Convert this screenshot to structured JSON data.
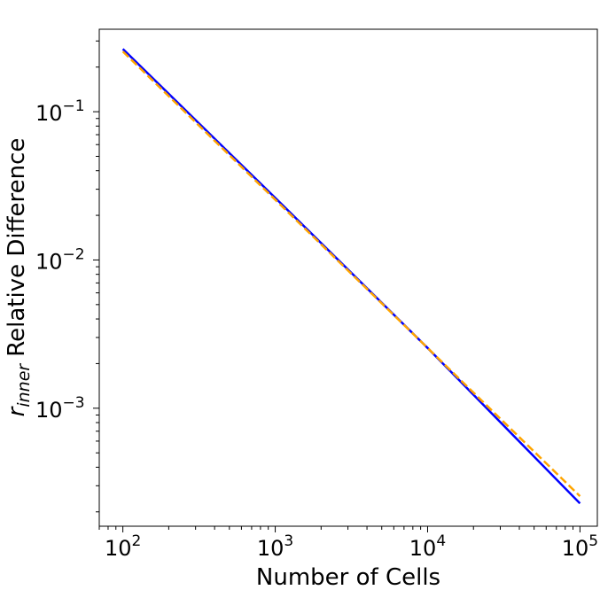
{
  "chart_data": {
    "type": "line",
    "title": "",
    "xlabel": "Number of Cells",
    "ylabel": "Relative Difference",
    "ylabel_symbol": "r",
    "ylabel_subscript": "inner",
    "xscale": "log",
    "yscale": "log",
    "xlim": [
      70,
      130000
    ],
    "ylim": [
      0.00016,
      0.36
    ],
    "grid": false,
    "legend": "none",
    "xticks": [
      {
        "value": 100,
        "base": "10",
        "exp": "2"
      },
      {
        "value": 1000,
        "base": "10",
        "exp": "3"
      },
      {
        "value": 10000,
        "base": "10",
        "exp": "4"
      },
      {
        "value": 100000,
        "base": "10",
        "exp": "5"
      }
    ],
    "yticks": [
      {
        "value": 0.001,
        "base": "10",
        "exp": "−3"
      },
      {
        "value": 0.01,
        "base": "10",
        "exp": "−2"
      },
      {
        "value": 0.1,
        "base": "10",
        "exp": "−1"
      }
    ],
    "series": [
      {
        "x": [
          100,
          1000,
          10000,
          100000
        ],
        "y": [
          0.265,
          0.0262,
          0.00255,
          0.000228
        ],
        "color": "#0000ff",
        "style": "solid"
      },
      {
        "x": [
          100,
          100000
        ],
        "y": [
          0.255,
          0.000255
        ],
        "color": "#ffa500",
        "style": "dashed"
      }
    ]
  }
}
